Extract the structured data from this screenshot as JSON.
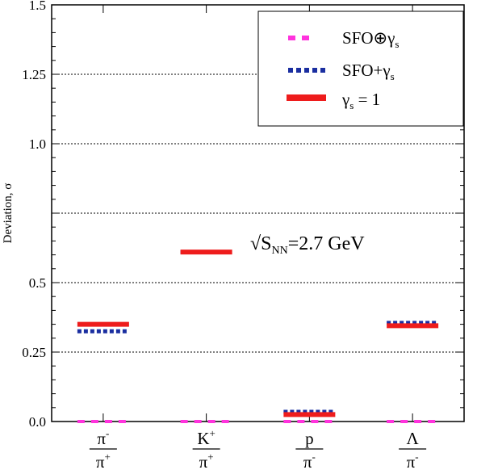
{
  "chart_data": {
    "type": "line",
    "title": "",
    "xlabel": "",
    "ylabel": "Deviation, σ",
    "ylim": [
      0,
      1.5
    ],
    "yticks": [
      {
        "value": 0.0,
        "label": "0.0"
      },
      {
        "value": 0.25,
        "label": "0.25"
      },
      {
        "value": 0.5,
        "label": "0.5"
      },
      {
        "value": 1.0,
        "label": "1.0"
      },
      {
        "value": 1.25,
        "label": "1.25"
      },
      {
        "value": 1.5,
        "label": "1.5"
      }
    ],
    "gridlines": [
      0.25,
      0.5,
      0.75,
      1.0,
      1.25
    ],
    "categories": [
      {
        "num": "π",
        "num_sup": "-",
        "den": "π",
        "den_sup": "+"
      },
      {
        "num": "K",
        "num_sup": "+",
        "den": "π",
        "den_sup": "+"
      },
      {
        "num": "p",
        "num_sup": "",
        "den": "π",
        "den_sup": "-"
      },
      {
        "num": "Λ",
        "num_sup": "",
        "den": "π",
        "den_sup": "-"
      }
    ],
    "series": [
      {
        "name": "SFO⊕γs",
        "legend_main": "SFO⊕γ",
        "legend_sub": "s",
        "style": "dashed-magenta",
        "color": "#ff33dd",
        "values": [
          0.0,
          0.0,
          0.0,
          0.0
        ]
      },
      {
        "name": "SFO+γs",
        "legend_main": "SFO+γ",
        "legend_sub": "s",
        "style": "dotted-blue",
        "color": "#1a2ea0",
        "values": [
          0.325,
          0.61,
          0.035,
          0.355
        ]
      },
      {
        "name": "γs = 1",
        "legend_main": "γ",
        "legend_sub": "s",
        "legend_tail": " = 1",
        "style": "solid-red",
        "color": "#ee1c1c",
        "values": [
          0.35,
          0.61,
          0.025,
          0.345
        ]
      }
    ],
    "annotation": {
      "prefix": "√S",
      "sub": "NN",
      "suffix": "=2.7 GeV"
    },
    "legend_position": "top-right",
    "grid": true
  }
}
